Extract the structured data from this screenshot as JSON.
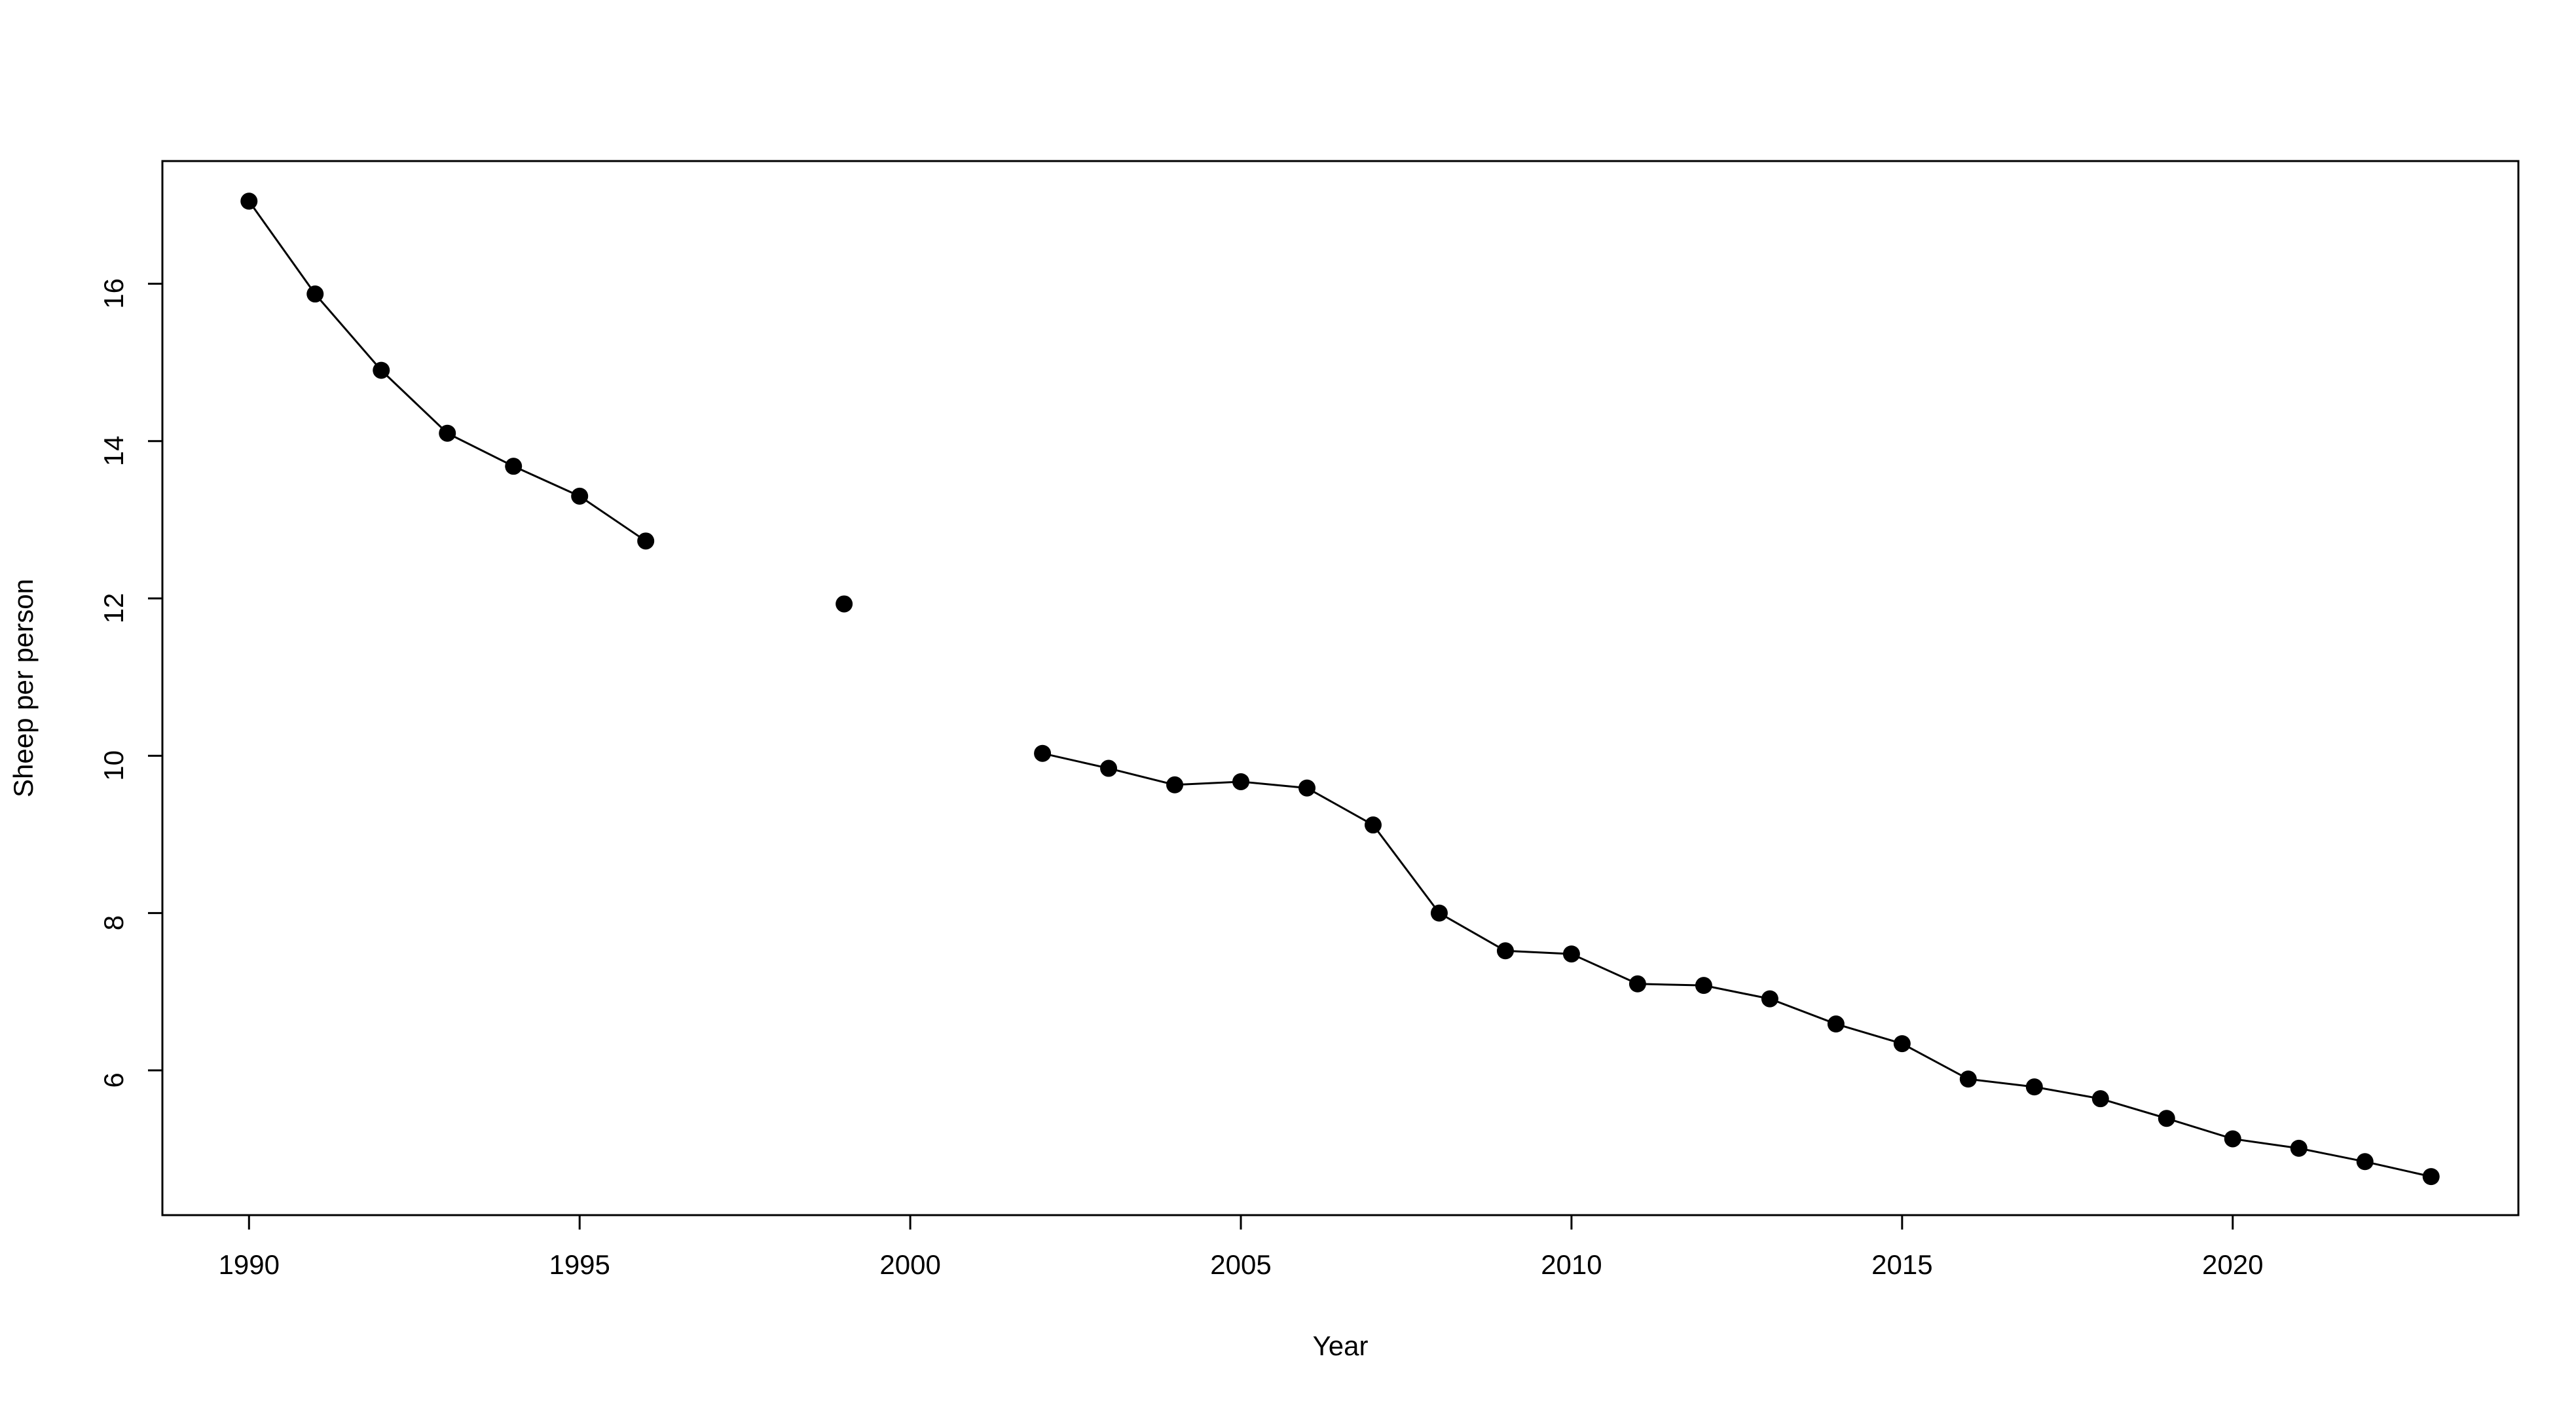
{
  "chart_data": {
    "type": "line",
    "x_label": "Year",
    "y_label": "Sheep per person",
    "x": [
      1990,
      1991,
      1992,
      1993,
      1994,
      1995,
      1996,
      1997,
      1998,
      1999,
      2000,
      2001,
      2002,
      2003,
      2004,
      2005,
      2006,
      2007,
      2008,
      2009,
      2010,
      2011,
      2012,
      2013,
      2014,
      2015,
      2016,
      2017,
      2018,
      2019,
      2020,
      2021,
      2022,
      2023
    ],
    "series": [
      {
        "color": "#000000",
        "values": [
          17.05,
          15.87,
          14.9,
          14.1,
          13.68,
          13.3,
          12.73,
          null,
          null,
          11.93,
          null,
          null,
          10.03,
          9.84,
          9.63,
          9.67,
          9.59,
          9.12,
          8.0,
          7.52,
          7.48,
          7.1,
          7.08,
          6.91,
          6.59,
          6.34,
          5.89,
          5.79,
          5.64,
          5.39,
          5.13,
          5.01,
          4.84,
          4.65
        ]
      }
    ],
    "xlim": [
      1988.69,
      2024.32
    ],
    "ylim": [
      4.16,
      17.56
    ],
    "xticks": [
      1990,
      1995,
      2000,
      2005,
      2010,
      2015,
      2020
    ],
    "yticks": [
      6,
      8,
      10,
      12,
      14,
      16
    ]
  }
}
